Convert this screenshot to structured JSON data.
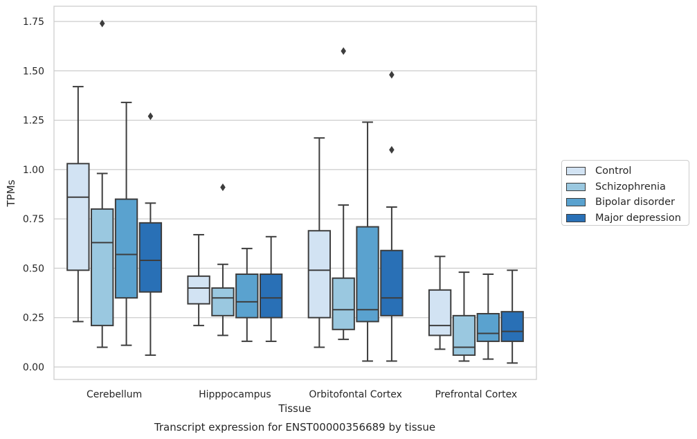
{
  "chart_data": {
    "type": "box",
    "caption": "Transcript expression for ENST00000356689 by tissue",
    "xlabel": "Tissue",
    "ylabel": "TPMs",
    "ylim": [
      -0.06,
      1.83
    ],
    "yticks": [
      "0.00",
      "0.25",
      "0.50",
      "0.75",
      "1.00",
      "1.25",
      "1.50",
      "1.75"
    ],
    "ytick_values": [
      0,
      0.25,
      0.5,
      0.75,
      1.0,
      1.25,
      1.5,
      1.75
    ],
    "grid": true,
    "legend_position": "right",
    "categories": [
      "Cerebellum",
      "Hipppocampus",
      "Orbitofontal Cortex",
      "Prefrontal Cortex"
    ],
    "series": [
      {
        "name": "Control",
        "color": "#d2e3f3",
        "boxes": [
          {
            "whisker_low": 0.23,
            "q1": 0.49,
            "median": 0.86,
            "q3": 1.03,
            "whisker_high": 1.42,
            "outliers": []
          },
          {
            "whisker_low": 0.21,
            "q1": 0.32,
            "median": 0.4,
            "q3": 0.46,
            "whisker_high": 0.67,
            "outliers": []
          },
          {
            "whisker_low": 0.1,
            "q1": 0.25,
            "median": 0.49,
            "q3": 0.69,
            "whisker_high": 1.16,
            "outliers": []
          },
          {
            "whisker_low": 0.09,
            "q1": 0.16,
            "median": 0.21,
            "q3": 0.39,
            "whisker_high": 0.56,
            "outliers": []
          }
        ]
      },
      {
        "name": "Schizophrenia",
        "color": "#9ac8e0",
        "boxes": [
          {
            "whisker_low": 0.1,
            "q1": 0.21,
            "median": 0.63,
            "q3": 0.8,
            "whisker_high": 0.98,
            "outliers": [
              1.74
            ]
          },
          {
            "whisker_low": 0.16,
            "q1": 0.26,
            "median": 0.35,
            "q3": 0.4,
            "whisker_high": 0.52,
            "outliers": [
              0.91
            ]
          },
          {
            "whisker_low": 0.14,
            "q1": 0.19,
            "median": 0.29,
            "q3": 0.45,
            "whisker_high": 0.82,
            "outliers": [
              1.6
            ]
          },
          {
            "whisker_low": 0.03,
            "q1": 0.06,
            "median": 0.1,
            "q3": 0.26,
            "whisker_high": 0.48,
            "outliers": []
          }
        ]
      },
      {
        "name": "Bipolar disorder",
        "color": "#5aa2cf",
        "boxes": [
          {
            "whisker_low": 0.11,
            "q1": 0.35,
            "median": 0.57,
            "q3": 0.85,
            "whisker_high": 1.34,
            "outliers": []
          },
          {
            "whisker_low": 0.13,
            "q1": 0.25,
            "median": 0.33,
            "q3": 0.47,
            "whisker_high": 0.6,
            "outliers": []
          },
          {
            "whisker_low": 0.03,
            "q1": 0.23,
            "median": 0.29,
            "q3": 0.71,
            "whisker_high": 1.24,
            "outliers": []
          },
          {
            "whisker_low": 0.04,
            "q1": 0.13,
            "median": 0.17,
            "q3": 0.27,
            "whisker_high": 0.47,
            "outliers": []
          }
        ]
      },
      {
        "name": "Major depression",
        "color": "#2970b6",
        "boxes": [
          {
            "whisker_low": 0.06,
            "q1": 0.38,
            "median": 0.54,
            "q3": 0.73,
            "whisker_high": 0.83,
            "outliers": [
              1.27
            ]
          },
          {
            "whisker_low": 0.13,
            "q1": 0.25,
            "median": 0.35,
            "q3": 0.47,
            "whisker_high": 0.66,
            "outliers": []
          },
          {
            "whisker_low": 0.03,
            "q1": 0.26,
            "median": 0.35,
            "q3": 0.59,
            "whisker_high": 0.81,
            "outliers": [
              1.1,
              1.48
            ]
          },
          {
            "whisker_low": 0.02,
            "q1": 0.13,
            "median": 0.18,
            "q3": 0.28,
            "whisker_high": 0.49,
            "outliers": []
          }
        ]
      }
    ]
  }
}
